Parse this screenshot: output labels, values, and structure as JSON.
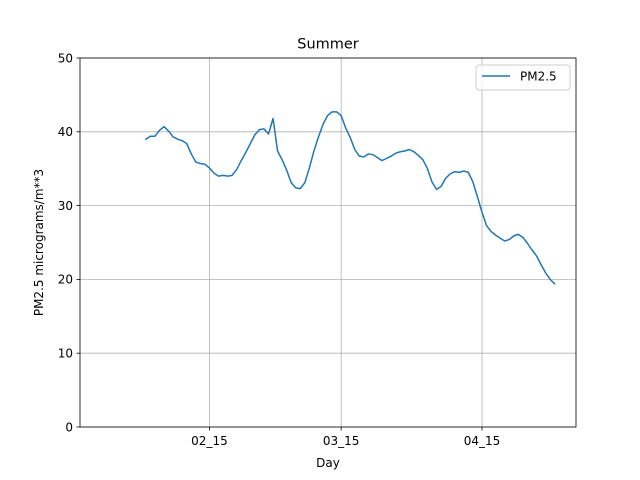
{
  "chart_data": {
    "type": "line",
    "title": "Summer",
    "xlabel": "Day",
    "ylabel": "PM2.5 micrograms/m**3",
    "x_tick_labels": [
      "02_15",
      "03_15",
      "04_15"
    ],
    "y_ticks": [
      0,
      10,
      20,
      30,
      40,
      50
    ],
    "ylim": [
      0,
      50
    ],
    "grid": true,
    "legend_position": "top-right",
    "series": [
      {
        "name": "PM2.5",
        "color": "#1f77b4",
        "points": [
          [
            0.0,
            39.0
          ],
          [
            1.0,
            39.4
          ],
          [
            2.0,
            39.4
          ],
          [
            3.0,
            40.2
          ],
          [
            4.0,
            40.7
          ],
          [
            5.0,
            40.1
          ],
          [
            6.0,
            39.3
          ],
          [
            7.0,
            39.0
          ],
          [
            8.0,
            38.8
          ],
          [
            9.0,
            38.4
          ],
          [
            10.0,
            37.0
          ],
          [
            11.0,
            35.9
          ],
          [
            12.0,
            35.7
          ],
          [
            13.0,
            35.6
          ],
          [
            14.0,
            35.1
          ],
          [
            15.0,
            34.4
          ],
          [
            16.0,
            34.0
          ],
          [
            17.0,
            34.1
          ],
          [
            18.0,
            34.0
          ],
          [
            19.0,
            34.1
          ],
          [
            20.0,
            34.9
          ],
          [
            21.0,
            36.1
          ],
          [
            22.0,
            37.2
          ],
          [
            23.0,
            38.4
          ],
          [
            24.0,
            39.6
          ],
          [
            25.0,
            40.3
          ],
          [
            26.0,
            40.4
          ],
          [
            27.0,
            39.7
          ],
          [
            28.0,
            41.8
          ],
          [
            29.0,
            37.4
          ],
          [
            30.0,
            36.2
          ],
          [
            31.0,
            34.8
          ],
          [
            32.0,
            33.1
          ],
          [
            33.0,
            32.4
          ],
          [
            34.0,
            32.3
          ],
          [
            35.0,
            33.1
          ],
          [
            36.0,
            35.1
          ],
          [
            37.0,
            37.4
          ],
          [
            38.0,
            39.3
          ],
          [
            39.0,
            41.0
          ],
          [
            40.0,
            42.2
          ],
          [
            41.0,
            42.7
          ],
          [
            42.0,
            42.7
          ],
          [
            43.0,
            42.2
          ],
          [
            44.0,
            40.5
          ],
          [
            45.0,
            39.2
          ],
          [
            46.0,
            37.6
          ],
          [
            47.0,
            36.7
          ],
          [
            48.0,
            36.6
          ],
          [
            49.0,
            37.0
          ],
          [
            50.0,
            36.9
          ],
          [
            51.0,
            36.5
          ],
          [
            52.0,
            36.1
          ],
          [
            53.0,
            36.4
          ],
          [
            54.0,
            36.7
          ],
          [
            55.0,
            37.1
          ],
          [
            56.0,
            37.3
          ],
          [
            57.0,
            37.4
          ],
          [
            58.0,
            37.6
          ],
          [
            59.0,
            37.3
          ],
          [
            60.0,
            36.8
          ],
          [
            61.0,
            36.2
          ],
          [
            62.0,
            35.0
          ],
          [
            63.0,
            33.2
          ],
          [
            64.0,
            32.2
          ],
          [
            65.0,
            32.6
          ],
          [
            66.0,
            33.7
          ],
          [
            67.0,
            34.3
          ],
          [
            68.0,
            34.6
          ],
          [
            69.0,
            34.5
          ],
          [
            70.0,
            34.7
          ],
          [
            71.0,
            34.5
          ],
          [
            72.0,
            33.2
          ],
          [
            73.0,
            31.2
          ],
          [
            74.0,
            29.1
          ],
          [
            75.0,
            27.3
          ],
          [
            76.0,
            26.5
          ],
          [
            77.0,
            26.0
          ],
          [
            78.0,
            25.6
          ],
          [
            79.0,
            25.2
          ],
          [
            80.0,
            25.4
          ],
          [
            81.0,
            25.9
          ],
          [
            82.0,
            26.1
          ],
          [
            83.0,
            25.7
          ],
          [
            84.0,
            24.9
          ],
          [
            85.0,
            24.0
          ],
          [
            86.0,
            23.2
          ],
          [
            87.0,
            22.0
          ],
          [
            88.0,
            20.9
          ],
          [
            89.0,
            20.0
          ],
          [
            90.0,
            19.4
          ]
        ]
      }
    ],
    "x_tick_positions": [
      14.0,
      43.0,
      74.0
    ],
    "xlim": [
      -14.5,
      94.7
    ]
  }
}
